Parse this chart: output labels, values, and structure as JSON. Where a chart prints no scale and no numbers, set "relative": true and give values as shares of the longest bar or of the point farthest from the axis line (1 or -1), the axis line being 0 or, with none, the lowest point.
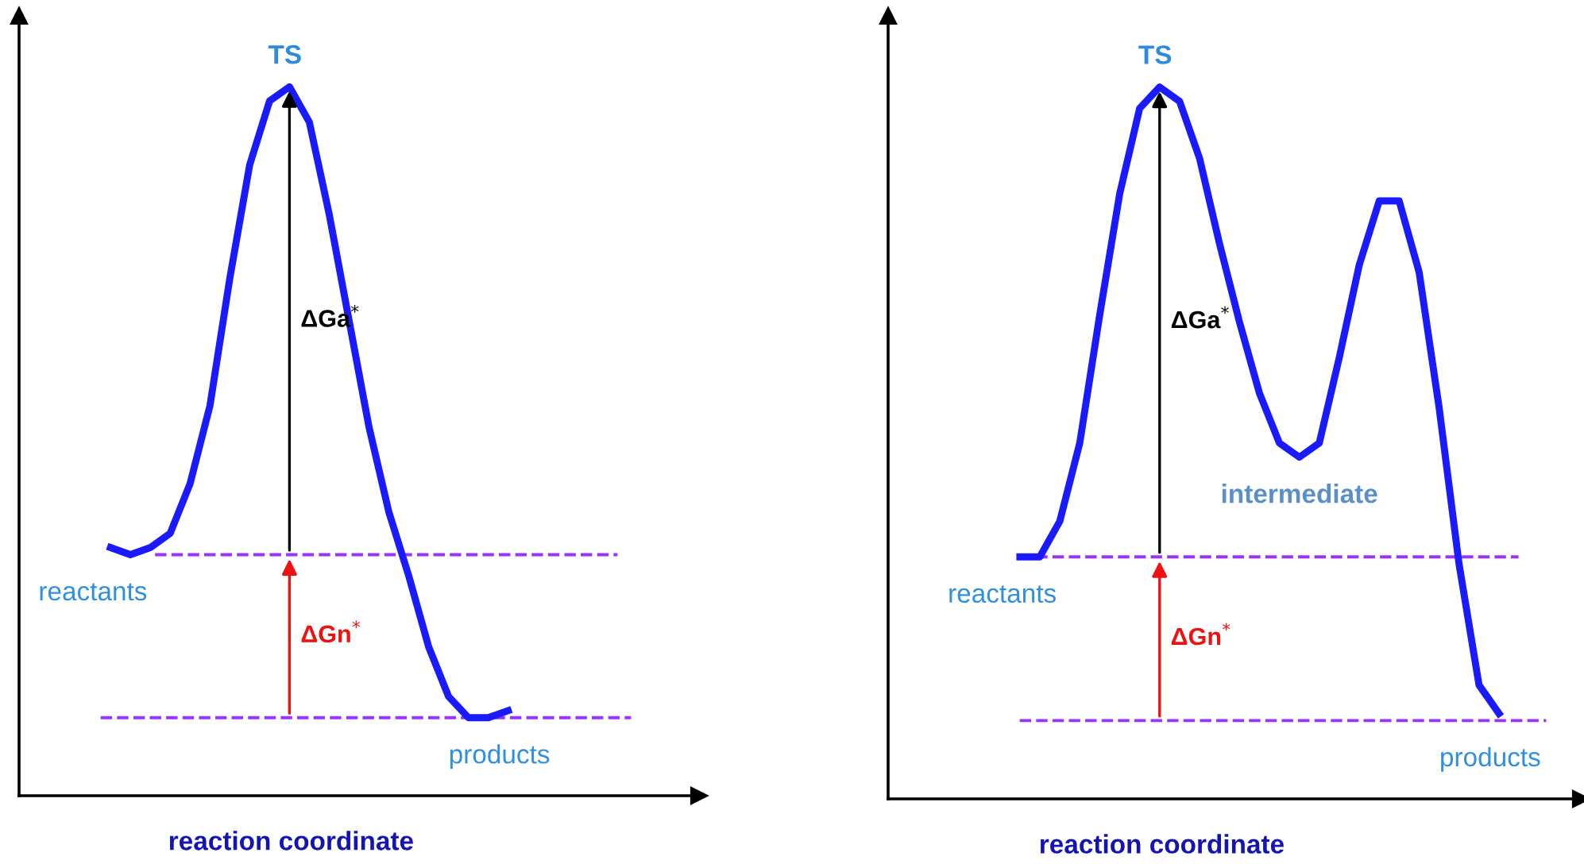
{
  "chart_data": [
    {
      "type": "line",
      "relative": true,
      "xlabel": "reaction coordinate",
      "categories": [
        null,
        null,
        null,
        null,
        null,
        null,
        null,
        null,
        null,
        null,
        null,
        null,
        null,
        null,
        null,
        null,
        null,
        null,
        null,
        null,
        null
      ],
      "series": [
        {
          "color": "#1a1aff",
          "values": [
            0.35,
            0.34,
            0.35,
            0.37,
            0.44,
            0.55,
            0.73,
            0.89,
            0.98,
            1.0,
            0.95,
            0.82,
            0.67,
            0.52,
            0.4,
            0.31,
            0.21,
            0.14,
            0.11,
            0.11,
            0.12
          ]
        }
      ],
      "ref_lines": [
        {
          "axis": "y",
          "value": 0.34,
          "color": "#9933ff",
          "line_style": "dashed"
        },
        {
          "axis": "y",
          "value": 0.11,
          "color": "#9933ff",
          "line_style": "dashed"
        }
      ],
      "annotations": [
        {
          "text": "TS",
          "y": 1.0
        },
        {
          "text": "ΔGa$^{*}$"
        },
        "reactants",
        {
          "text": "ΔGn$^{*}$"
        },
        {
          "text": "products",
          "y": 0.11
        }
      ],
      "marker": "none",
      "line_style": "solid"
    },
    {
      "type": "line",
      "relative": true,
      "xlabel": "reaction coordinate",
      "categories": [
        null,
        null,
        null,
        null,
        null,
        null,
        null,
        null,
        null,
        null,
        null,
        null,
        null,
        null,
        null,
        null,
        null,
        null,
        null,
        null,
        null,
        null,
        null,
        null,
        null
      ],
      "series": [
        {
          "color": "#1a1aff",
          "values": [
            0.34,
            0.34,
            0.39,
            0.5,
            0.68,
            0.85,
            0.97,
            1.0,
            0.98,
            0.9,
            0.78,
            0.67,
            0.57,
            0.5,
            0.48,
            0.5,
            0.62,
            0.75,
            0.84,
            0.84,
            0.74,
            0.55,
            0.33,
            0.16,
            0.12
          ]
        }
      ],
      "ref_lines": [
        {
          "axis": "y",
          "value": 0.34,
          "color": "#9933ff",
          "line_style": "dashed"
        },
        {
          "axis": "y",
          "value": 0.11,
          "color": "#9933ff",
          "line_style": "dashed"
        }
      ],
      "annotations": [
        {
          "text": "TS",
          "y": 1.0
        },
        {
          "text": "ΔGa$^{*}$"
        },
        {
          "text": "intermediate",
          "y": 0.48
        },
        "reactants",
        {
          "text": "ΔGn$^{*}$"
        },
        {
          "text": "products",
          "y": 0.11
        }
      ],
      "marker": "none",
      "line_style": "solid"
    }
  ]
}
